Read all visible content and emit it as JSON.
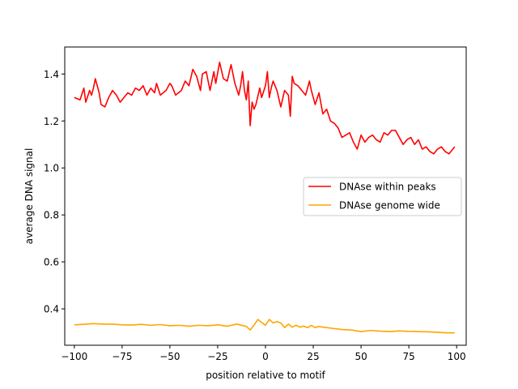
{
  "chart_data": {
    "type": "line",
    "title": "",
    "xlabel": "position relative to motif",
    "ylabel": "average DNA signal",
    "xlim": [
      -105,
      105
    ],
    "ylim": [
      0.245,
      1.515
    ],
    "xticks": [
      -100,
      -75,
      -50,
      -25,
      0,
      25,
      50,
      75,
      100
    ],
    "xtick_labels": [
      "−100",
      "−75",
      "−50",
      "−25",
      "0",
      "25",
      "50",
      "75",
      "100"
    ],
    "yticks": [
      0.4,
      0.6,
      0.8,
      1.0,
      1.2,
      1.4
    ],
    "ytick_labels": [
      "0.4",
      "0.6",
      "0.8",
      "1.0",
      "1.2",
      "1.4"
    ],
    "grid": false,
    "legend_position": "center-right",
    "series": [
      {
        "name": "DNAse within peaks",
        "color": "#ff0000",
        "x": [
          -100,
          -97,
          -95,
          -94,
          -92,
          -91,
          -90,
          -89,
          -87,
          -86,
          -84,
          -82,
          -80,
          -78,
          -76,
          -74,
          -72,
          -70,
          -68,
          -66,
          -64,
          -62,
          -60,
          -58,
          -57,
          -55,
          -52,
          -50,
          -49,
          -47,
          -44,
          -42,
          -40,
          -38,
          -36,
          -34,
          -33,
          -31,
          -29,
          -27,
          -26,
          -24,
          -22,
          -20,
          -18,
          -16,
          -14,
          -13,
          -12,
          -11,
          -10,
          -9,
          -8,
          -7,
          -6,
          -5,
          -3,
          -2,
          0,
          1,
          2,
          3,
          4,
          6,
          8,
          10,
          12,
          13,
          14,
          15,
          17,
          19,
          21,
          23,
          24,
          26,
          28,
          30,
          32,
          34,
          36,
          38,
          40,
          42,
          44,
          46,
          48,
          50,
          52,
          54,
          56,
          58,
          60,
          62,
          64,
          66,
          68,
          70,
          72,
          74,
          76,
          78,
          80,
          82,
          84,
          86,
          88,
          90,
          92,
          94,
          96,
          98,
          99
        ],
        "values": [
          1.3,
          1.29,
          1.34,
          1.28,
          1.33,
          1.31,
          1.34,
          1.38,
          1.32,
          1.27,
          1.26,
          1.3,
          1.33,
          1.31,
          1.28,
          1.3,
          1.32,
          1.31,
          1.34,
          1.33,
          1.35,
          1.31,
          1.34,
          1.32,
          1.36,
          1.31,
          1.33,
          1.36,
          1.35,
          1.31,
          1.33,
          1.37,
          1.35,
          1.42,
          1.39,
          1.33,
          1.4,
          1.41,
          1.33,
          1.41,
          1.36,
          1.45,
          1.38,
          1.37,
          1.44,
          1.36,
          1.31,
          1.35,
          1.41,
          1.33,
          1.29,
          1.37,
          1.18,
          1.28,
          1.25,
          1.27,
          1.34,
          1.3,
          1.35,
          1.41,
          1.3,
          1.34,
          1.37,
          1.33,
          1.26,
          1.33,
          1.31,
          1.22,
          1.39,
          1.36,
          1.35,
          1.33,
          1.31,
          1.37,
          1.33,
          1.27,
          1.32,
          1.23,
          1.25,
          1.2,
          1.19,
          1.17,
          1.13,
          1.14,
          1.15,
          1.11,
          1.08,
          1.14,
          1.11,
          1.13,
          1.14,
          1.12,
          1.11,
          1.15,
          1.14,
          1.16,
          1.16,
          1.13,
          1.1,
          1.12,
          1.13,
          1.1,
          1.12,
          1.08,
          1.09,
          1.07,
          1.06,
          1.08,
          1.09,
          1.07,
          1.06,
          1.08,
          1.09
        ]
      },
      {
        "name": "DNAse genome wide",
        "color": "#ffa500",
        "x": [
          -100,
          -95,
          -90,
          -85,
          -80,
          -75,
          -70,
          -65,
          -60,
          -55,
          -50,
          -45,
          -40,
          -35,
          -30,
          -25,
          -20,
          -15,
          -10,
          -8,
          -6,
          -4,
          -2,
          0,
          2,
          4,
          6,
          8,
          10,
          12,
          14,
          16,
          18,
          20,
          22,
          24,
          26,
          28,
          30,
          35,
          40,
          45,
          50,
          55,
          60,
          65,
          70,
          75,
          80,
          85,
          90,
          95,
          99
        ],
        "values": [
          0.332,
          0.334,
          0.337,
          0.335,
          0.335,
          0.332,
          0.331,
          0.334,
          0.33,
          0.333,
          0.328,
          0.33,
          0.326,
          0.33,
          0.328,
          0.332,
          0.326,
          0.335,
          0.325,
          0.31,
          0.33,
          0.355,
          0.342,
          0.33,
          0.355,
          0.34,
          0.346,
          0.34,
          0.32,
          0.335,
          0.322,
          0.33,
          0.322,
          0.326,
          0.32,
          0.33,
          0.32,
          0.325,
          0.322,
          0.317,
          0.312,
          0.31,
          0.303,
          0.308,
          0.305,
          0.303,
          0.306,
          0.304,
          0.303,
          0.302,
          0.3,
          0.298,
          0.298
        ]
      }
    ]
  }
}
